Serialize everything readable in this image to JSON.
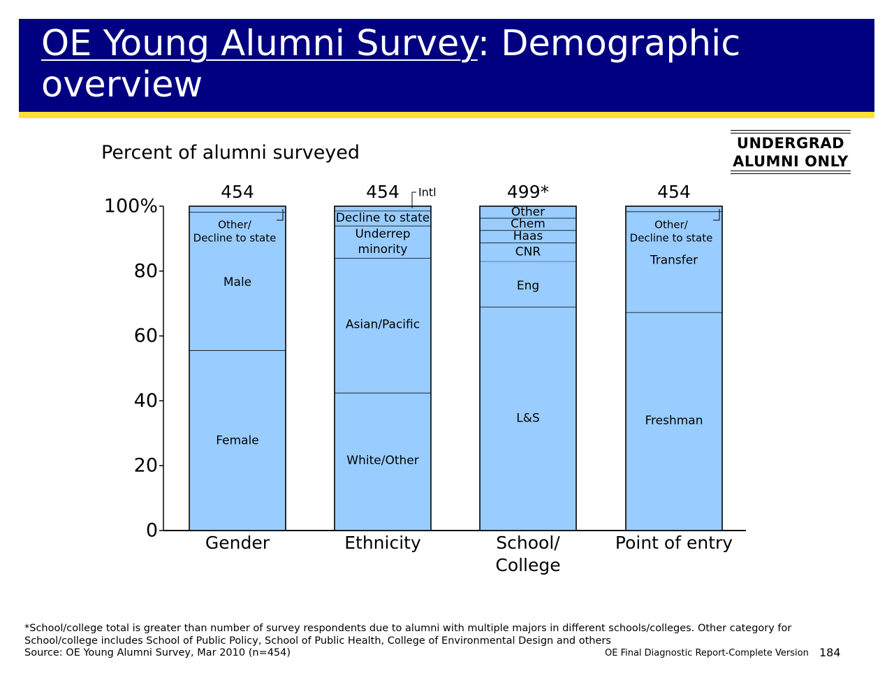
{
  "header": {
    "title_underlined": "OE Young Alumni Survey",
    "title_rest": ": Demographic overview"
  },
  "badge": {
    "line1": "UNDERGRAD",
    "line2": "ALUMNI ONLY"
  },
  "subtitle": "Percent of alumni surveyed",
  "chart_data": {
    "type": "bar",
    "stacked": true,
    "ylim": [
      0,
      100
    ],
    "y_ticks": [
      "0",
      "20",
      "40",
      "60",
      "80",
      "100%"
    ],
    "y_tick_values": [
      0,
      20,
      40,
      60,
      80,
      100
    ],
    "bar_color": "#99CCFF",
    "bars": [
      {
        "category": [
          "Gender"
        ],
        "total_label": "454",
        "segments": [
          {
            "label": [
              "Female"
            ],
            "value": 55.6
          },
          {
            "label": [
              "Male"
            ],
            "value": 42.6
          },
          {
            "label": [
              "Other/",
              "Decline to state"
            ],
            "value": 1.8,
            "callout": "right"
          }
        ]
      },
      {
        "category": [
          "Ethnicity"
        ],
        "total_label": "454",
        "segments": [
          {
            "label": [
              "White/Other"
            ],
            "value": 42.5
          },
          {
            "label": [
              "Asian/Pacific"
            ],
            "value": 41.5
          },
          {
            "label": [
              "Underrep",
              "minority"
            ],
            "value": 10.0
          },
          {
            "label": [
              "Decline to state"
            ],
            "value": 4.6
          },
          {
            "label": [
              "Intl"
            ],
            "value": 1.4,
            "callout": "top-right"
          }
        ]
      },
      {
        "category": [
          "School/",
          "College"
        ],
        "total_label": "499*",
        "segments": [
          {
            "label": [
              "L&S"
            ],
            "value": 69.0
          },
          {
            "label": [
              "Eng"
            ],
            "value": 14.0
          },
          {
            "label": [
              "CNR"
            ],
            "value": 5.8
          },
          {
            "label": [
              "Haas"
            ],
            "value": 3.8
          },
          {
            "label": [
              "Chem"
            ],
            "value": 3.8
          },
          {
            "label": [
              "Other"
            ],
            "value": 3.6
          }
        ]
      },
      {
        "category": [
          "Point of entry"
        ],
        "total_label": "454",
        "segments": [
          {
            "label": [
              "Freshman"
            ],
            "value": 67.3
          },
          {
            "label": [
              "Transfer"
            ],
            "value": 31.1
          },
          {
            "label": [
              "Other/",
              "Decline to state"
            ],
            "value": 1.6,
            "callout": "right"
          }
        ]
      }
    ]
  },
  "footnote": "*School/college total is greater than number of survey respondents due to alumni with multiple majors in different schools/colleges.  Other category for School/college includes School of Public Policy, School of Public Health, College of Environmental Design and others",
  "source": "Source: OE Young Alumni Survey, Mar 2010 (n=454)",
  "report_name": "OE Final Diagnostic Report-Complete Version",
  "page_number": "184"
}
